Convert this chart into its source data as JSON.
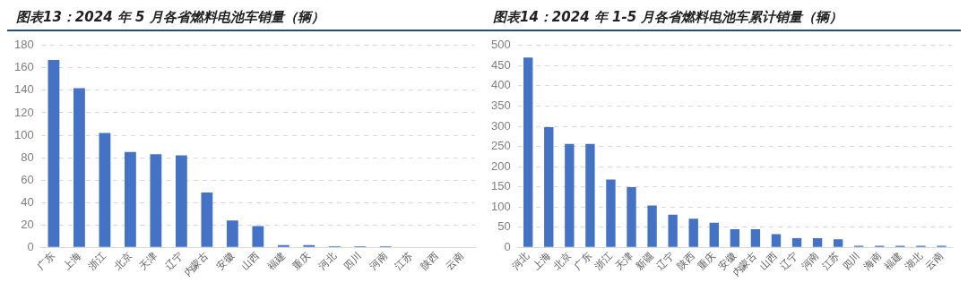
{
  "chart_data": [
    {
      "type": "bar",
      "title": "图表13：2024 年 5 月各省燃料电池车销量（辆）",
      "categories": [
        "广东",
        "上海",
        "浙江",
        "北京",
        "天津",
        "辽宁",
        "内蒙古",
        "安徽",
        "山西",
        "福建",
        "重庆",
        "河北",
        "四川",
        "河南",
        "江苏",
        "陕西",
        "云南"
      ],
      "values": [
        167,
        142,
        102,
        85,
        83,
        82,
        49,
        24,
        19,
        2,
        2,
        1,
        1,
        1,
        0,
        0,
        0
      ],
      "color": "#4472c4",
      "ylim": [
        0,
        180
      ],
      "yticks": [
        0,
        20,
        40,
        60,
        80,
        100,
        120,
        140,
        160,
        180
      ],
      "grid": "y"
    },
    {
      "type": "bar",
      "title": "图表14：2024 年 1-5 月各省燃料电池车累计销量（辆）",
      "categories": [
        "河北",
        "上海",
        "北京",
        "广东",
        "浙江",
        "天津",
        "新疆",
        "辽宁",
        "陕西",
        "重庆",
        "安徽",
        "内蒙古",
        "山西",
        "辽宁",
        "河南",
        "江苏",
        "四川",
        "海南",
        "福建",
        "湖北",
        "云南"
      ],
      "values": [
        470,
        298,
        256,
        256,
        168,
        149,
        104,
        81,
        71,
        61,
        45,
        45,
        33,
        23,
        23,
        20,
        4,
        4,
        4,
        4,
        4
      ],
      "color": "#4472c4",
      "ylim": [
        0,
        500
      ],
      "yticks": [
        0,
        50,
        100,
        150,
        200,
        250,
        300,
        350,
        400,
        450,
        500
      ],
      "grid": "y"
    }
  ]
}
